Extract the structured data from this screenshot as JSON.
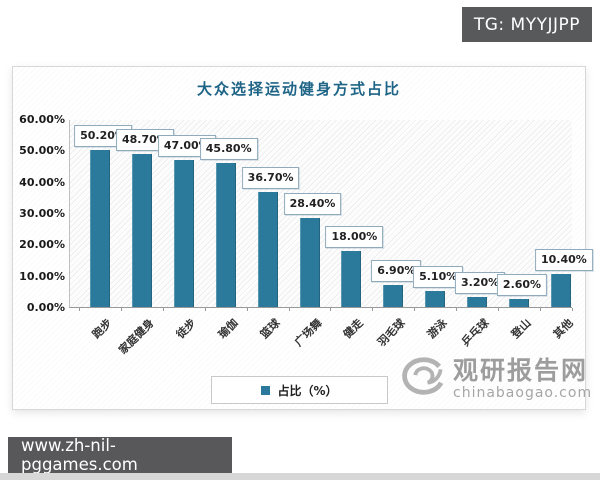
{
  "badge": {
    "text": "TG: MYYJJPP"
  },
  "address_bar": {
    "url": "www.zh-nil-pggames.com"
  },
  "watermark_logo": {
    "site_name": "观研报告网",
    "site_domain": "chinabaogao.com"
  },
  "colors": {
    "bar": "#2B7A9C",
    "title": "#1E6486",
    "badge_background": "#58595B",
    "logo_gray": "#9D9D9D"
  },
  "chart_data": {
    "type": "bar",
    "title": "大众选择运动健身方式占比",
    "categories": [
      "跑步",
      "家庭健身",
      "徒步",
      "瑜伽",
      "篮球",
      "广场舞",
      "健走",
      "羽毛球",
      "游泳",
      "乒乓球",
      "登山",
      "其他"
    ],
    "values": [
      50.2,
      48.7,
      47.0,
      45.8,
      36.7,
      28.4,
      18.0,
      6.9,
      5.1,
      3.2,
      2.6,
      10.4
    ],
    "data_labels": [
      "50.20%",
      "48.70%",
      "47.00%",
      "45.80%",
      "36.70%",
      "28.40%",
      "18.00%",
      "6.90%",
      "5.10%",
      "3.20%",
      "2.60%",
      "10.40%"
    ],
    "yticks": [
      "0.00%",
      "10.00%",
      "20.00%",
      "30.00%",
      "40.00%",
      "50.00%",
      "60.00%"
    ],
    "ylim": [
      0,
      60
    ],
    "xlabel": "",
    "ylabel": "",
    "grid": false,
    "legend": "占比（%）",
    "legend_position": "bottom",
    "bar_color": "#2B7A9C"
  }
}
